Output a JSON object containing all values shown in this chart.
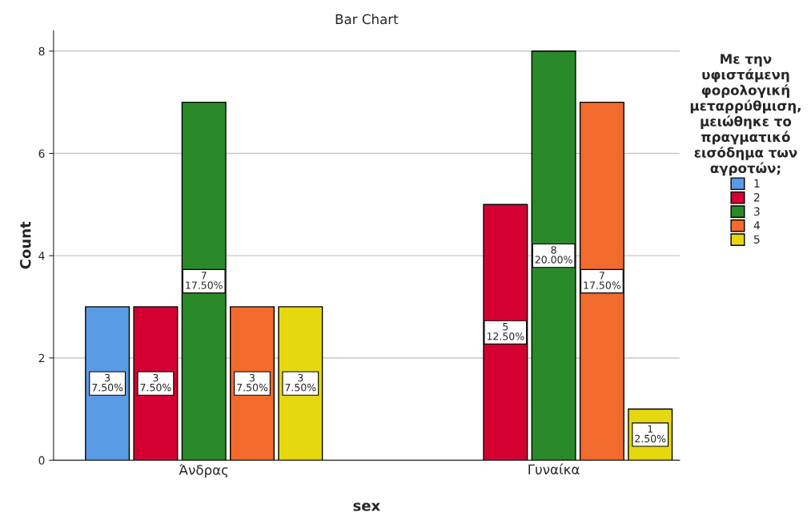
{
  "chart_data": {
    "type": "bar",
    "title": "Bar Chart",
    "xlabel": "sex",
    "ylabel": "Count",
    "legend_title": "Με την\nυφιστάμενη\nφορολογική\nμεταρρύθμιση,\nμειώθηκε το\nπραγματικό\nεισόδημα των\nαγροτών;",
    "categories": [
      "Άνδρας",
      "Γυναίκα"
    ],
    "series": [
      {
        "name": "1",
        "color": "#5a9be6",
        "values": [
          3,
          null
        ],
        "value_labels": [
          "3\n7.50%",
          null
        ]
      },
      {
        "name": "2",
        "color": "#d50032",
        "values": [
          3,
          5
        ],
        "value_labels": [
          "3\n7.50%",
          "5\n12.50%"
        ]
      },
      {
        "name": "3",
        "color": "#2a8a2a",
        "values": [
          7,
          8
        ],
        "value_labels": [
          "7\n17.50%",
          "8\n20.00%"
        ]
      },
      {
        "name": "4",
        "color": "#f26b2d",
        "values": [
          3,
          7
        ],
        "value_labels": [
          "3\n7.50%",
          "7\n17.50%"
        ]
      },
      {
        "name": "5",
        "color": "#e6d80f",
        "values": [
          3,
          1
        ],
        "value_labels": [
          "3\n7.50%",
          "1\n2.50%"
        ]
      }
    ],
    "ylim": [
      0,
      8.4
    ],
    "yticks": [
      0,
      2,
      4,
      6,
      8
    ],
    "grid": "y",
    "legend": "right"
  }
}
